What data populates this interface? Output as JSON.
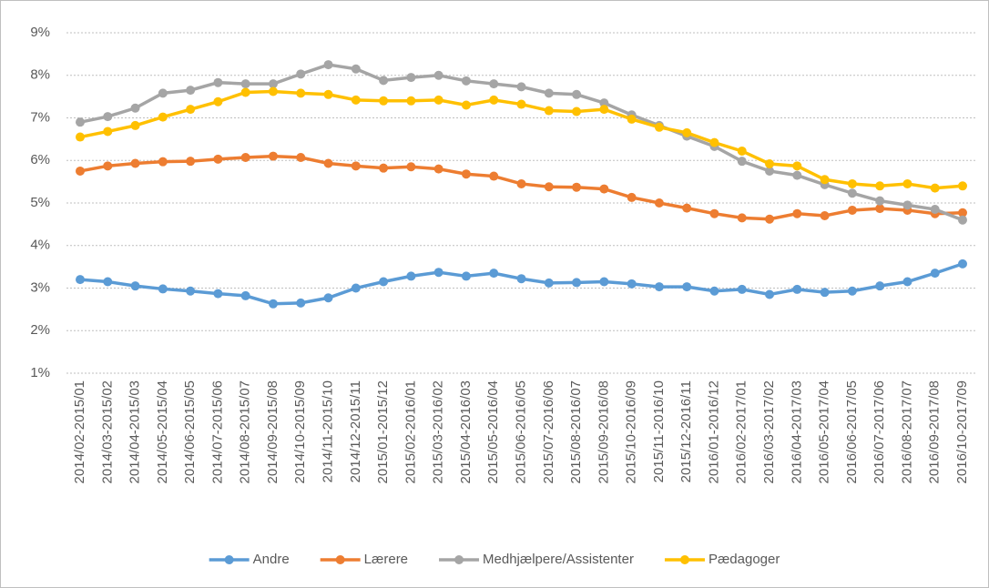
{
  "chart_data": {
    "type": "line",
    "categories": [
      "2014/02-2015/01",
      "2014/03-2015/02",
      "2014/04-2015/03",
      "2014/05-2015/04",
      "2014/06-2015/05",
      "2014/07-2015/06",
      "2014/08-2015/07",
      "2014/09-2015/08",
      "2014/10-2015/09",
      "2014/11-2015/10",
      "2014/12-2015/11",
      "2015/01-2015/12",
      "2015/02-2016/01",
      "2015/03-2016/02",
      "2015/04-2016/03",
      "2015/05-2016/04",
      "2015/06-2016/05",
      "2015/07-2016/06",
      "2015/08-2016/07",
      "2015/09-2016/08",
      "2015/10-2016/09",
      "2015/11-2016/10",
      "2015/12-2016/11",
      "2016/01-2016/12",
      "2016/02-2017/01",
      "2016/03-2017/02",
      "2016/04-2017/03",
      "2016/05-2017/04",
      "2016/06-2017/05",
      "2016/07-2017/06",
      "2016/08-2017/07",
      "2016/09-2017/08",
      "2016/10-2017/09"
    ],
    "series": [
      {
        "name": "Andre",
        "color": "#5b9bd5",
        "values": [
          3.2,
          3.15,
          3.05,
          2.98,
          2.93,
          2.87,
          2.82,
          2.63,
          2.65,
          2.77,
          3.0,
          3.15,
          3.28,
          3.37,
          3.28,
          3.35,
          3.22,
          3.12,
          3.13,
          3.15,
          3.1,
          3.03,
          3.03,
          2.93,
          2.97,
          2.85,
          2.97,
          2.9,
          2.93,
          3.05,
          3.15,
          3.35,
          3.57
        ]
      },
      {
        "name": "Lærere",
        "color": "#ed7d31",
        "values": [
          5.75,
          5.87,
          5.93,
          5.97,
          5.98,
          6.03,
          6.07,
          6.1,
          6.07,
          5.93,
          5.87,
          5.82,
          5.85,
          5.8,
          5.68,
          5.63,
          5.45,
          5.38,
          5.37,
          5.33,
          5.13,
          5.0,
          4.88,
          4.75,
          4.65,
          4.62,
          4.75,
          4.7,
          4.83,
          4.87,
          4.83,
          4.75,
          4.77
        ]
      },
      {
        "name": "Medhjælpere/Assistenter",
        "color": "#a5a5a5",
        "values": [
          6.9,
          7.03,
          7.23,
          7.58,
          7.65,
          7.83,
          7.8,
          7.8,
          8.03,
          8.25,
          8.15,
          7.88,
          7.95,
          8.0,
          7.87,
          7.8,
          7.73,
          7.58,
          7.55,
          7.35,
          7.07,
          6.82,
          6.57,
          6.33,
          5.98,
          5.75,
          5.65,
          5.43,
          5.23,
          5.05,
          4.95,
          4.85,
          4.6
        ]
      },
      {
        "name": "Pædagoger",
        "color": "#ffc000",
        "values": [
          6.55,
          6.68,
          6.82,
          7.02,
          7.2,
          7.38,
          7.6,
          7.62,
          7.58,
          7.55,
          7.42,
          7.4,
          7.4,
          7.42,
          7.3,
          7.42,
          7.32,
          7.17,
          7.15,
          7.2,
          6.97,
          6.78,
          6.65,
          6.42,
          6.22,
          5.92,
          5.87,
          5.55,
          5.45,
          5.4,
          5.45,
          5.35,
          5.4
        ]
      }
    ],
    "ylim": [
      1,
      9
    ],
    "yticks": [
      {
        "value": 1,
        "label": "1%"
      },
      {
        "value": 2,
        "label": "2%"
      },
      {
        "value": 3,
        "label": "3%"
      },
      {
        "value": 4,
        "label": "4%"
      },
      {
        "value": 5,
        "label": "5%"
      },
      {
        "value": 6,
        "label": "6%"
      },
      {
        "value": 7,
        "label": "7%"
      },
      {
        "value": 8,
        "label": "8%"
      },
      {
        "value": 9,
        "label": "9%"
      }
    ],
    "grid": true,
    "legend": "bottom"
  }
}
